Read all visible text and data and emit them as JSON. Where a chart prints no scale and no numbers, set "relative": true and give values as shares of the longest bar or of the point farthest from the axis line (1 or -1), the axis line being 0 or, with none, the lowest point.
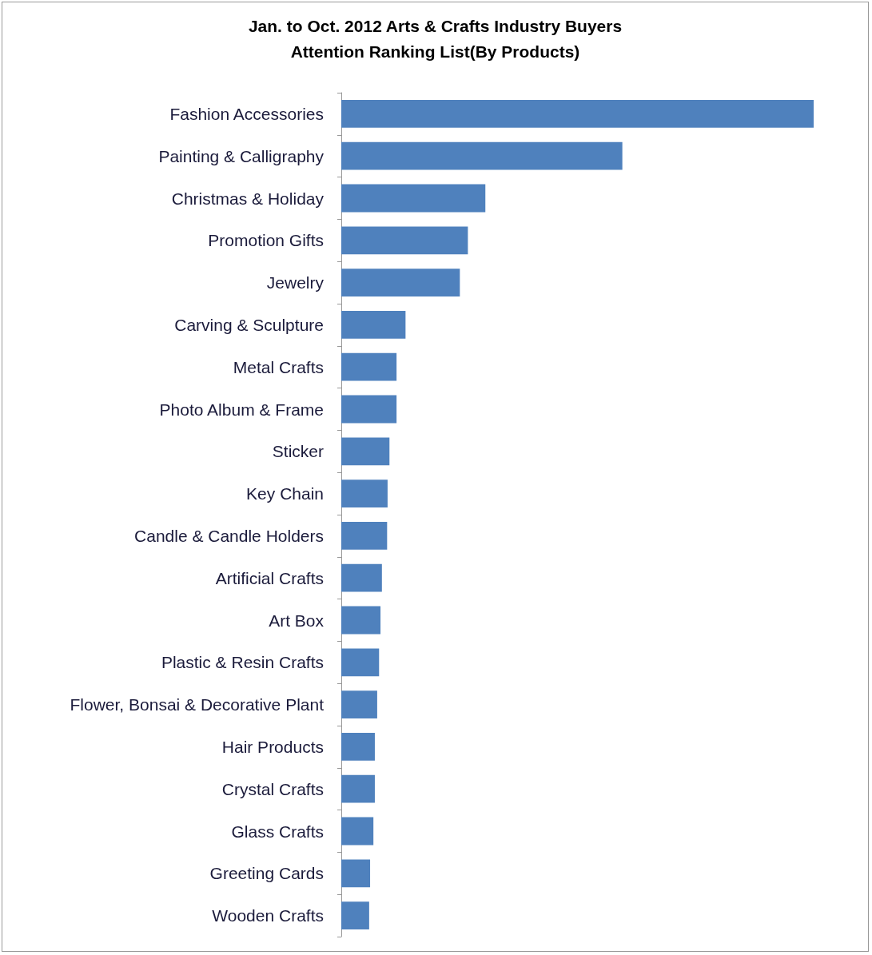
{
  "chart_data": {
    "type": "bar",
    "orientation": "horizontal",
    "relative": true,
    "title": "Jan. to Oct. 2012 Arts & Crafts Industry Buyers\nAttention Ranking List(By Products)",
    "categories": [
      "Fashion Accessories",
      "Painting & Calligraphy",
      "Christmas & Holiday",
      "Promotion Gifts",
      "Jewelry",
      "Carving & Sculpture",
      "Metal Crafts",
      "Photo Album & Frame",
      "Sticker",
      "Key Chain",
      "Candle & Candle Holders",
      "Artificial Crafts",
      "Art Box",
      "Plastic & Resin Crafts",
      "Flower, Bonsai & Decorative Plant",
      "Hair Products",
      "Crystal Crafts",
      "Glass Crafts",
      "Greeting Cards",
      "Wooden Crafts"
    ],
    "values": [
      1,
      0.595,
      0.305,
      0.268,
      0.251,
      0.136,
      0.117,
      0.117,
      0.102,
      0.098,
      0.097,
      0.086,
      0.083,
      0.08,
      0.076,
      0.071,
      0.071,
      0.068,
      0.061,
      0.059
    ],
    "color": "#4f81bd"
  }
}
